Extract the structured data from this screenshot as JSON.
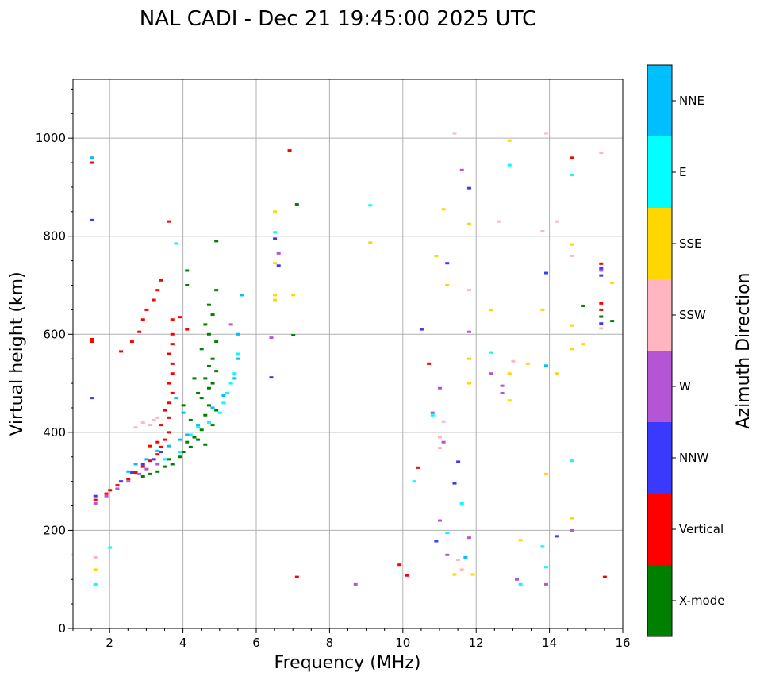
{
  "chart_data": {
    "type": "scatter",
    "title": "NAL CADI - Dec 21 19:45:00 2025 UTC",
    "xlabel": "Frequency (MHz)",
    "ylabel": "Virtual height (km)",
    "xlim": [
      1,
      16
    ],
    "ylim": [
      0,
      1120
    ],
    "xticks": [
      2,
      4,
      6,
      8,
      10,
      12,
      14,
      16
    ],
    "yticks": [
      0,
      200,
      400,
      600,
      800,
      1000
    ],
    "grid": true,
    "colorbar": {
      "label": "Azimuth Direction",
      "categories": [
        {
          "name": "X-mode",
          "color": "#008000"
        },
        {
          "name": "Vertical",
          "color": "#ff0000"
        },
        {
          "name": "NNW",
          "color": "#3a3aff"
        },
        {
          "name": "W",
          "color": "#b455d6"
        },
        {
          "name": "SSW",
          "color": "#ffb6c1"
        },
        {
          "name": "SSE",
          "color": "#ffd700"
        },
        {
          "name": "E",
          "color": "#00ffff"
        },
        {
          "name": "NNE",
          "color": "#00bfff"
        }
      ]
    },
    "series": [
      {
        "name": "X-mode",
        "points": [
          [
            3.3,
            320
          ],
          [
            3.5,
            330
          ],
          [
            3.7,
            335
          ],
          [
            3.6,
            345
          ],
          [
            3.9,
            350
          ],
          [
            4.0,
            360
          ],
          [
            4.2,
            370
          ],
          [
            4.1,
            380
          ],
          [
            4.4,
            385
          ],
          [
            4.6,
            375
          ],
          [
            4.3,
            390
          ],
          [
            4.5,
            405
          ],
          [
            4.8,
            415
          ],
          [
            4.2,
            425
          ],
          [
            4.6,
            435
          ],
          [
            4.9,
            445
          ],
          [
            4.7,
            455
          ],
          [
            4.5,
            470
          ],
          [
            4.4,
            480
          ],
          [
            4.7,
            490
          ],
          [
            4.8,
            500
          ],
          [
            4.6,
            510
          ],
          [
            4.9,
            525
          ],
          [
            4.7,
            535
          ],
          [
            4.8,
            550
          ],
          [
            4.5,
            570
          ],
          [
            4.9,
            585
          ],
          [
            4.7,
            600
          ],
          [
            4.6,
            620
          ],
          [
            4.8,
            640
          ],
          [
            4.7,
            660
          ],
          [
            4.9,
            690
          ],
          [
            4.1,
            700
          ],
          [
            4.1,
            730
          ],
          [
            4.9,
            790
          ],
          [
            3.1,
            315
          ],
          [
            2.9,
            310
          ],
          [
            4.0,
            455
          ],
          [
            4.3,
            510
          ],
          [
            7.1,
            865
          ],
          [
            7.0,
            598
          ],
          [
            14.9,
            658
          ],
          [
            15.7,
            627
          ],
          [
            15.4,
            636
          ]
        ]
      },
      {
        "name": "Vertical",
        "points": [
          [
            1.6,
            262
          ],
          [
            1.9,
            275
          ],
          [
            2.0,
            282
          ],
          [
            2.2,
            292
          ],
          [
            2.5,
            305
          ],
          [
            2.7,
            318
          ],
          [
            2.9,
            330
          ],
          [
            3.1,
            342
          ],
          [
            3.3,
            355
          ],
          [
            3.4,
            370
          ],
          [
            3.5,
            385
          ],
          [
            3.6,
            400
          ],
          [
            3.4,
            415
          ],
          [
            3.6,
            430
          ],
          [
            3.5,
            445
          ],
          [
            3.6,
            460
          ],
          [
            3.7,
            480
          ],
          [
            3.6,
            500
          ],
          [
            3.7,
            520
          ],
          [
            3.7,
            540
          ],
          [
            3.6,
            560
          ],
          [
            3.7,
            580
          ],
          [
            3.7,
            600
          ],
          [
            3.7,
            630
          ],
          [
            3.9,
            635
          ],
          [
            2.3,
            565
          ],
          [
            2.6,
            585
          ],
          [
            2.8,
            605
          ],
          [
            2.9,
            630
          ],
          [
            3.0,
            650
          ],
          [
            3.2,
            670
          ],
          [
            3.3,
            690
          ],
          [
            3.4,
            710
          ],
          [
            3.6,
            830
          ],
          [
            4.1,
            610
          ],
          [
            3.3,
            380
          ],
          [
            3.1,
            372
          ],
          [
            6.9,
            975
          ],
          [
            7.1,
            105
          ],
          [
            9.9,
            130
          ],
          [
            10.1,
            108
          ],
          [
            10.4,
            328
          ],
          [
            10.7,
            540
          ],
          [
            14.6,
            960
          ],
          [
            15.4,
            744
          ],
          [
            15.4,
            663
          ],
          [
            15.4,
            650
          ],
          [
            15.5,
            105
          ],
          [
            1.5,
            590
          ],
          [
            1.5,
            585
          ],
          [
            1.5,
            950
          ]
        ]
      },
      {
        "name": "NNW",
        "points": [
          [
            1.5,
            470
          ],
          [
            1.5,
            833
          ],
          [
            1.5,
            960
          ],
          [
            2.3,
            300
          ],
          [
            2.6,
            318
          ],
          [
            2.9,
            335
          ],
          [
            3.2,
            345
          ],
          [
            3.4,
            360
          ],
          [
            6.5,
            795
          ],
          [
            6.6,
            740
          ],
          [
            6.4,
            512
          ],
          [
            10.5,
            610
          ],
          [
            10.9,
            178
          ],
          [
            11.2,
            745
          ],
          [
            11.4,
            296
          ],
          [
            11.5,
            340
          ],
          [
            11.8,
            898
          ],
          [
            13.9,
            725
          ],
          [
            14.2,
            188
          ],
          [
            15.4,
            720
          ],
          [
            15.4,
            734
          ],
          [
            15.4,
            622
          ],
          [
            1.6,
            270
          ]
        ]
      },
      {
        "name": "W",
        "points": [
          [
            1.6,
            255
          ],
          [
            1.9,
            270
          ],
          [
            2.2,
            285
          ],
          [
            2.5,
            300
          ],
          [
            2.8,
            315
          ],
          [
            3.0,
            325
          ],
          [
            3.3,
            335
          ],
          [
            6.4,
            593
          ],
          [
            6.6,
            765
          ],
          [
            10.8,
            440
          ],
          [
            11.0,
            490
          ],
          [
            11.1,
            380
          ],
          [
            11.0,
            220
          ],
          [
            11.2,
            150
          ],
          [
            11.6,
            935
          ],
          [
            11.8,
            605
          ],
          [
            12.4,
            520
          ],
          [
            12.7,
            480
          ],
          [
            12.7,
            495
          ],
          [
            13.1,
            100
          ],
          [
            13.9,
            90
          ],
          [
            14.6,
            200
          ],
          [
            15.4,
            730
          ],
          [
            8.7,
            90
          ],
          [
            11.8,
            185
          ],
          [
            5.3,
            620
          ]
        ]
      },
      {
        "name": "SSW",
        "points": [
          [
            1.6,
            145
          ],
          [
            3.1,
            415
          ],
          [
            3.2,
            425
          ],
          [
            3.3,
            430
          ],
          [
            2.7,
            410
          ],
          [
            2.9,
            420
          ],
          [
            11.0,
            390
          ],
          [
            11.0,
            368
          ],
          [
            11.4,
            1010
          ],
          [
            11.5,
            140
          ],
          [
            11.6,
            120
          ],
          [
            11.8,
            690
          ],
          [
            12.6,
            830
          ],
          [
            13.0,
            545
          ],
          [
            13.8,
            810
          ],
          [
            13.9,
            1010
          ],
          [
            14.2,
            830
          ],
          [
            14.6,
            760
          ],
          [
            15.4,
            970
          ],
          [
            15.4,
            612
          ],
          [
            11.1,
            422
          ]
        ]
      },
      {
        "name": "SSE",
        "points": [
          [
            1.6,
            120
          ],
          [
            6.5,
            850
          ],
          [
            6.5,
            745
          ],
          [
            6.5,
            680
          ],
          [
            6.5,
            670
          ],
          [
            7.0,
            680
          ],
          [
            9.1,
            787
          ],
          [
            10.9,
            760
          ],
          [
            11.1,
            855
          ],
          [
            11.2,
            700
          ],
          [
            11.4,
            110
          ],
          [
            11.8,
            825
          ],
          [
            11.8,
            550
          ],
          [
            11.8,
            500
          ],
          [
            11.9,
            110
          ],
          [
            12.4,
            650
          ],
          [
            12.9,
            995
          ],
          [
            12.9,
            520
          ],
          [
            12.9,
            465
          ],
          [
            13.2,
            180
          ],
          [
            13.4,
            540
          ],
          [
            13.8,
            650
          ],
          [
            13.9,
            315
          ],
          [
            14.2,
            520
          ],
          [
            14.6,
            783
          ],
          [
            14.6,
            618
          ],
          [
            14.6,
            570
          ],
          [
            14.6,
            225
          ],
          [
            14.9,
            580
          ],
          [
            15.7,
            705
          ]
        ]
      },
      {
        "name": "E",
        "points": [
          [
            1.6,
            90
          ],
          [
            2.0,
            165
          ],
          [
            3.5,
            345
          ],
          [
            3.9,
            360
          ],
          [
            4.2,
            395
          ],
          [
            4.4,
            410
          ],
          [
            4.7,
            420
          ],
          [
            5.0,
            440
          ],
          [
            5.1,
            460
          ],
          [
            5.2,
            480
          ],
          [
            5.3,
            500
          ],
          [
            5.4,
            520
          ],
          [
            5.5,
            560
          ],
          [
            5.5,
            600
          ],
          [
            5.6,
            680
          ],
          [
            3.8,
            785
          ],
          [
            6.5,
            808
          ],
          [
            9.1,
            863
          ],
          [
            10.3,
            300
          ],
          [
            10.8,
            435
          ],
          [
            11.2,
            195
          ],
          [
            11.6,
            255
          ],
          [
            12.4,
            563
          ],
          [
            12.9,
            945
          ],
          [
            13.2,
            90
          ],
          [
            13.8,
            167
          ],
          [
            13.9,
            125
          ],
          [
            14.6,
            925
          ],
          [
            14.6,
            342
          ]
        ]
      },
      {
        "name": "NNE",
        "points": [
          [
            2.5,
            320
          ],
          [
            2.7,
            335
          ],
          [
            3.0,
            345
          ],
          [
            3.3,
            362
          ],
          [
            3.6,
            372
          ],
          [
            3.9,
            385
          ],
          [
            4.1,
            395
          ],
          [
            4.4,
            415
          ],
          [
            4.8,
            450
          ],
          [
            5.1,
            475
          ],
          [
            5.4,
            510
          ],
          [
            5.5,
            550
          ],
          [
            5.5,
            600
          ],
          [
            5.6,
            680
          ],
          [
            4.0,
            440
          ],
          [
            3.8,
            470
          ],
          [
            1.5,
            960
          ],
          [
            13.9,
            536
          ],
          [
            11.7,
            145
          ]
        ]
      }
    ]
  }
}
